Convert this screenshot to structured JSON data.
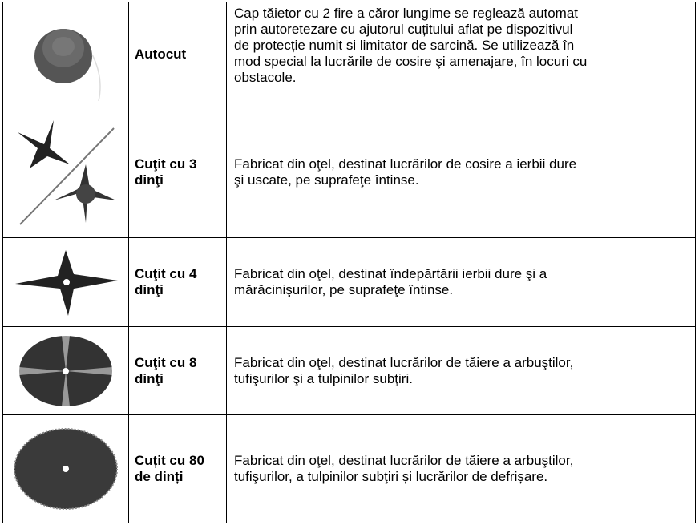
{
  "table": {
    "rows": [
      {
        "name": [
          "Autocut"
        ],
        "description": [
          "Cap tăietor cu 2 fire a căror lungime se reglează automat",
          "prin autoretezare cu ajutorul cuțitului aflat pe dispozitivul",
          "de protecție numit si limitator de sarcină. Se utilizează în",
          "mod special la lucrările de cosire şi amenajare, în locuri cu",
          "obstacole."
        ]
      },
      {
        "name": [
          "Cuţit cu 3",
          "dinţi"
        ],
        "description": [
          "Fabricat din oţel, destinat lucrărilor de cosire a ierbii dure",
          "şi uscate, pe suprafeţe întinse."
        ]
      },
      {
        "name": [
          "Cuţit cu 4",
          "dinţi"
        ],
        "description": [
          "Fabricat din oţel, destinat îndepărtării ierbii dure şi a",
          "mărăcinişurilor, pe suprafeţe întinse."
        ]
      },
      {
        "name": [
          "Cuţit cu 8",
          "dinţi"
        ],
        "description": [
          "Fabricat din oţel, destinat lucrărilor de tăiere a arbuştilor,",
          "tufişurilor şi a tulpinilor subţiri."
        ]
      },
      {
        "name": [
          "Cuțit cu 80",
          "de dinți"
        ],
        "description": [
          "Fabricat din oţel, destinat lucrărilor de tăiere a arbuştilor,",
          "tufişurilor, a tulpinilor subţiri și lucrărilor de defrișare."
        ]
      }
    ]
  }
}
